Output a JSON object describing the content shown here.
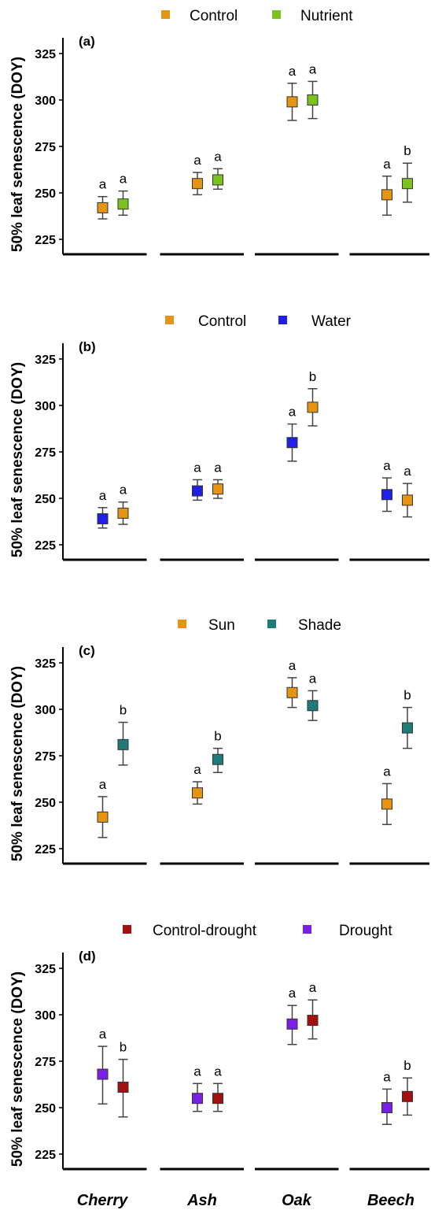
{
  "figure": {
    "ylabel": "50% leaf senescence (DOY)",
    "x_categories": [
      "Cherry",
      "Ash",
      "Oak",
      "Beech"
    ]
  },
  "chart_data": [
    {
      "type": "scatter",
      "panel_label": "(a)",
      "ylabel": "50% leaf senescence (DOY)",
      "categories": [
        "Cherry",
        "Ash",
        "Oak",
        "Beech"
      ],
      "ylim": [
        212,
        330
      ],
      "yticks": [
        225,
        250,
        275,
        300,
        325
      ],
      "grid": false,
      "legend_position": "top",
      "series": [
        {
          "name": "Control",
          "color": "#E69512",
          "values": [
            242,
            255,
            299,
            249
          ],
          "errors": [
            [
              236,
              248
            ],
            [
              249,
              261
            ],
            [
              289,
              309
            ],
            [
              238,
              259
            ]
          ],
          "letters": [
            "a",
            "a",
            "a",
            "a"
          ]
        },
        {
          "name": "Nutrient",
          "color": "#7CC21C",
          "values": [
            244,
            257,
            300,
            255
          ],
          "errors": [
            [
              238,
              251
            ],
            [
              252,
              263
            ],
            [
              290,
              310
            ],
            [
              245,
              266
            ]
          ],
          "letters": [
            "a",
            "a",
            "a",
            "b"
          ]
        }
      ]
    },
    {
      "type": "scatter",
      "panel_label": "(b)",
      "ylabel": "50% leaf senescence (DOY)",
      "categories": [
        "Cherry",
        "Ash",
        "Oak",
        "Beech"
      ],
      "ylim": [
        212,
        330
      ],
      "yticks": [
        225,
        250,
        275,
        300,
        325
      ],
      "grid": false,
      "legend_position": "top",
      "series": [
        {
          "name": "Water",
          "color": "#1F1FE6",
          "values": [
            239,
            254,
            280,
            252
          ],
          "errors": [
            [
              234,
              245
            ],
            [
              249,
              260
            ],
            [
              270,
              290
            ],
            [
              243,
              261
            ]
          ],
          "letters": [
            "a",
            "a",
            "a",
            "a"
          ]
        },
        {
          "name": "Control",
          "color": "#E69512",
          "values": [
            242,
            255,
            299,
            249
          ],
          "errors": [
            [
              236,
              248
            ],
            [
              250,
              260
            ],
            [
              289,
              309
            ],
            [
              240,
              258
            ]
          ],
          "letters": [
            "a",
            "a",
            "b",
            "a"
          ]
        }
      ],
      "legend_order": [
        "Control",
        "Water"
      ]
    },
    {
      "type": "scatter",
      "panel_label": "(c)",
      "ylabel": "50% leaf senescence (DOY)",
      "categories": [
        "Cherry",
        "Ash",
        "Oak",
        "Beech"
      ],
      "ylim": [
        212,
        330
      ],
      "yticks": [
        225,
        250,
        275,
        300,
        325
      ],
      "grid": false,
      "legend_position": "top",
      "series": [
        {
          "name": "Sun",
          "color": "#E69512",
          "values": [
            242,
            255,
            309,
            249
          ],
          "errors": [
            [
              231,
              253
            ],
            [
              249,
              261
            ],
            [
              301,
              317
            ],
            [
              238,
              260
            ]
          ],
          "letters": [
            "a",
            "a",
            "a",
            "a"
          ]
        },
        {
          "name": "Shade",
          "color": "#1E7B78",
          "values": [
            281,
            273,
            302,
            290
          ],
          "errors": [
            [
              270,
              293
            ],
            [
              266,
              279
            ],
            [
              294,
              310
            ],
            [
              279,
              301
            ]
          ],
          "letters": [
            "b",
            "b",
            "a",
            "b"
          ]
        }
      ]
    },
    {
      "type": "scatter",
      "panel_label": "(d)",
      "ylabel": "50% leaf senescence (DOY)",
      "categories": [
        "Cherry",
        "Ash",
        "Oak",
        "Beech"
      ],
      "ylim": [
        212,
        330
      ],
      "yticks": [
        225,
        250,
        275,
        300,
        325
      ],
      "grid": false,
      "legend_position": "top",
      "series": [
        {
          "name": "Drought",
          "color": "#7A1FE6",
          "values": [
            268,
            255,
            295,
            250
          ],
          "errors": [
            [
              252,
              283
            ],
            [
              248,
              263
            ],
            [
              284,
              305
            ],
            [
              241,
              260
            ]
          ],
          "letters": [
            "a",
            "a",
            "a",
            "a"
          ]
        },
        {
          "name": "Control-drought",
          "color": "#A31010",
          "values": [
            261,
            255,
            297,
            256
          ],
          "errors": [
            [
              245,
              276
            ],
            [
              248,
              263
            ],
            [
              287,
              308
            ],
            [
              246,
              266
            ]
          ],
          "letters": [
            "b",
            "a",
            "a",
            "b"
          ]
        }
      ],
      "legend_order": [
        "Control-drought",
        "Drought"
      ]
    }
  ]
}
